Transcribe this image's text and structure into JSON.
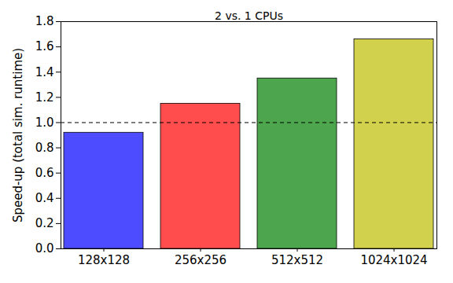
{
  "chart_data": {
    "type": "bar",
    "title": "2 vs. 1 CPUs",
    "y_label": "Speed-up (total sim. runtime)",
    "categories": [
      "128x128",
      "256x256",
      "512x512",
      "1024x1024"
    ],
    "values": [
      0.92,
      1.15,
      1.35,
      1.66
    ],
    "colors": [
      "#4d4dff",
      "#ff4d4d",
      "#4da64d",
      "#d1d14d"
    ],
    "reference_line": 1.0,
    "ylim": [
      0,
      1.8
    ],
    "yticks": [
      {
        "value": 0,
        "label": "0.0"
      },
      {
        "value": 0.2,
        "label": "0.2"
      },
      {
        "value": 0.4,
        "label": "0.4"
      },
      {
        "value": 0.6,
        "label": "0.6"
      },
      {
        "value": 0.8,
        "label": "0.8"
      },
      {
        "value": 1,
        "label": "1.0"
      },
      {
        "value": 1.2,
        "label": "1.2"
      },
      {
        "value": 1.4,
        "label": "1.4"
      },
      {
        "value": 1.6,
        "label": "1.6"
      },
      {
        "value": 1.8,
        "label": "1.8"
      }
    ],
    "grid": false
  }
}
